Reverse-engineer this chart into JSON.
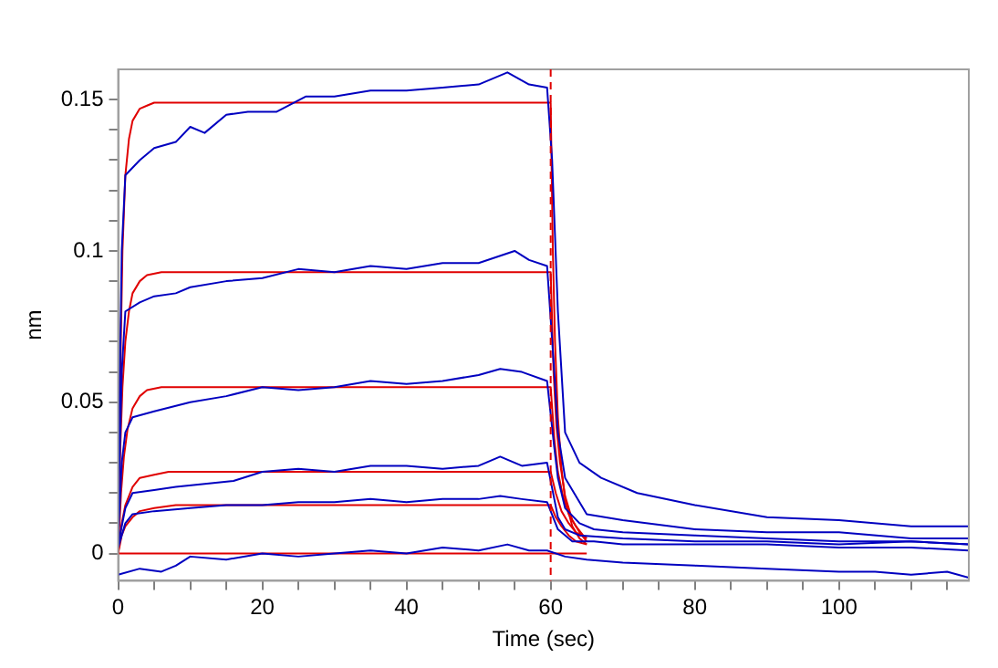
{
  "chart_data": {
    "type": "line",
    "xlabel": "Time (sec)",
    "ylabel": "nm",
    "xlim": [
      0,
      118
    ],
    "ylim": [
      -0.009,
      0.16
    ],
    "xticks": [
      0,
      {
        "value": 5,
        "label": null
      },
      {
        "value": 10,
        "label": null
      },
      {
        "value": 15,
        "label": null
      },
      20,
      {
        "value": 25,
        "label": null
      },
      {
        "value": 30,
        "label": null
      },
      {
        "value": 35,
        "label": null
      },
      40,
      {
        "value": 45,
        "label": null
      },
      {
        "value": 50,
        "label": null
      },
      {
        "value": 55,
        "label": null
      },
      60,
      {
        "value": 65,
        "label": null
      },
      {
        "value": 70,
        "label": null
      },
      {
        "value": 75,
        "label": null
      },
      80,
      {
        "value": 85,
        "label": null
      },
      {
        "value": 90,
        "label": null
      },
      {
        "value": 95,
        "label": null
      },
      100,
      {
        "value": 105,
        "label": null
      },
      {
        "value": 110,
        "label": null
      },
      {
        "value": 115,
        "label": null
      }
    ],
    "yticks": [
      0,
      {
        "value": 0.01,
        "label": null
      },
      {
        "value": 0.02,
        "label": null
      },
      {
        "value": 0.03,
        "label": null
      },
      {
        "value": 0.04,
        "label": null
      },
      0.05,
      {
        "value": 0.06,
        "label": null
      },
      {
        "value": 0.07,
        "label": null
      },
      {
        "value": 0.08,
        "label": null
      },
      {
        "value": 0.09,
        "label": null
      },
      0.1,
      {
        "value": 0.11,
        "label": null
      },
      {
        "value": 0.12,
        "label": null
      },
      {
        "value": 0.13,
        "label": null
      },
      {
        "value": 0.14,
        "label": null
      },
      0.15
    ],
    "legend": false,
    "grid": false,
    "ref_lines": [
      {
        "axis": "x",
        "value": 60,
        "color": "#e00000",
        "line_style": "dashed"
      }
    ],
    "series": [
      {
        "color": "#0000c0",
        "x": [
          0,
          0.5,
          1,
          3,
          5,
          8,
          10,
          12,
          15,
          18,
          22,
          26,
          30,
          35,
          40,
          45,
          50,
          54,
          57,
          59.5,
          60.2,
          61,
          62,
          64,
          67,
          72,
          80,
          90,
          100,
          110,
          118
        ],
        "values": [
          0.02,
          0.1,
          0.125,
          0.13,
          0.134,
          0.136,
          0.141,
          0.139,
          0.145,
          0.146,
          0.146,
          0.151,
          0.151,
          0.153,
          0.153,
          0.154,
          0.155,
          0.159,
          0.155,
          0.154,
          0.13,
          0.08,
          0.04,
          0.03,
          0.025,
          0.02,
          0.016,
          0.012,
          0.011,
          0.009,
          0.009
        ]
      },
      {
        "color": "#0000c0",
        "x": [
          0,
          0.5,
          1,
          3,
          5,
          8,
          10,
          15,
          20,
          25,
          30,
          35,
          40,
          45,
          50,
          55,
          57,
          59.5,
          60.5,
          61,
          62,
          65,
          70,
          80,
          90,
          100,
          110,
          118
        ],
        "values": [
          0.01,
          0.06,
          0.08,
          0.083,
          0.085,
          0.086,
          0.088,
          0.09,
          0.091,
          0.094,
          0.093,
          0.095,
          0.094,
          0.096,
          0.096,
          0.1,
          0.097,
          0.095,
          0.06,
          0.04,
          0.025,
          0.013,
          0.011,
          0.008,
          0.007,
          0.007,
          0.005,
          0.005
        ]
      },
      {
        "color": "#0000c0",
        "x": [
          0,
          0.5,
          1,
          2,
          5,
          10,
          15,
          20,
          25,
          30,
          35,
          40,
          45,
          50,
          53,
          56,
          59.5,
          60.5,
          61,
          62,
          64,
          66,
          70,
          80,
          90,
          100,
          110,
          118
        ],
        "values": [
          0.005,
          0.03,
          0.04,
          0.045,
          0.047,
          0.05,
          0.052,
          0.055,
          0.054,
          0.055,
          0.057,
          0.056,
          0.057,
          0.059,
          0.061,
          0.06,
          0.057,
          0.035,
          0.025,
          0.015,
          0.01,
          0.008,
          0.007,
          0.006,
          0.005,
          0.004,
          0.004,
          0.003
        ]
      },
      {
        "color": "#0000c0",
        "x": [
          0,
          1,
          2,
          5,
          8,
          12,
          16,
          20,
          25,
          30,
          35,
          40,
          45,
          50,
          53,
          56,
          59.5,
          60.5,
          61,
          62,
          64,
          70,
          80,
          90,
          100,
          110,
          118
        ],
        "values": [
          0.003,
          0.015,
          0.02,
          0.021,
          0.022,
          0.023,
          0.024,
          0.027,
          0.028,
          0.027,
          0.029,
          0.029,
          0.028,
          0.029,
          0.032,
          0.029,
          0.03,
          0.018,
          0.012,
          0.008,
          0.006,
          0.005,
          0.004,
          0.004,
          0.003,
          0.004,
          0.003
        ]
      },
      {
        "color": "#0000c0",
        "x": [
          0,
          1,
          2,
          5,
          10,
          15,
          20,
          25,
          30,
          35,
          40,
          45,
          50,
          53,
          56,
          59.5,
          60.5,
          61,
          63,
          66,
          70,
          80,
          90,
          100,
          110,
          118
        ],
        "values": [
          0.002,
          0.01,
          0.013,
          0.014,
          0.015,
          0.016,
          0.016,
          0.017,
          0.017,
          0.018,
          0.017,
          0.018,
          0.018,
          0.019,
          0.018,
          0.017,
          0.011,
          0.008,
          0.004,
          0.004,
          0.003,
          0.003,
          0.003,
          0.002,
          0.002,
          0.001
        ]
      },
      {
        "color": "#0000c0",
        "x": [
          0,
          3,
          6,
          8,
          10,
          15,
          20,
          25,
          30,
          35,
          40,
          45,
          50,
          54,
          57,
          59.5,
          62,
          65,
          70,
          80,
          90,
          100,
          105,
          110,
          115,
          118
        ],
        "values": [
          -0.007,
          -0.005,
          -0.006,
          -0.004,
          -0.001,
          -0.002,
          0,
          -0.001,
          0,
          0.001,
          0,
          0.002,
          0.001,
          0.003,
          0.001,
          0.001,
          -0.001,
          -0.002,
          -0.003,
          -0.004,
          -0.005,
          -0.006,
          -0.006,
          -0.007,
          -0.006,
          -0.008
        ]
      },
      {
        "color": "#e00000",
        "x": [
          0,
          0.3,
          0.6,
          1,
          1.5,
          2,
          3,
          4,
          5,
          60,
          60.3,
          60.6,
          61,
          61.5,
          62,
          63,
          64,
          65
        ],
        "values": [
          0,
          0.06,
          0.1,
          0.125,
          0.137,
          0.143,
          0.147,
          0.148,
          0.149,
          0.149,
          0.1,
          0.07,
          0.045,
          0.028,
          0.018,
          0.009,
          0.005,
          0.003
        ]
      },
      {
        "color": "#e00000",
        "x": [
          0,
          0.3,
          0.6,
          1,
          1.5,
          2,
          3,
          4,
          6,
          60,
          60.4,
          60.8,
          61.3,
          62,
          63,
          64,
          65
        ],
        "values": [
          0,
          0.035,
          0.055,
          0.07,
          0.08,
          0.086,
          0.09,
          0.092,
          0.093,
          0.093,
          0.06,
          0.042,
          0.03,
          0.019,
          0.011,
          0.007,
          0.004
        ]
      },
      {
        "color": "#e00000",
        "x": [
          0,
          0.4,
          0.8,
          1.3,
          2,
          3,
          4,
          6,
          60,
          60.5,
          61,
          61.7,
          62.5,
          63.5,
          64.5,
          65
        ],
        "values": [
          0,
          0.02,
          0.032,
          0.041,
          0.048,
          0.052,
          0.054,
          0.055,
          0.055,
          0.038,
          0.027,
          0.019,
          0.013,
          0.009,
          0.006,
          0.005
        ]
      },
      {
        "color": "#e00000",
        "x": [
          0,
          0.5,
          1,
          2,
          3,
          5,
          7,
          60,
          60.7,
          61.5,
          62.5,
          63.5,
          65
        ],
        "values": [
          0,
          0.01,
          0.016,
          0.022,
          0.025,
          0.026,
          0.027,
          0.027,
          0.02,
          0.014,
          0.01,
          0.007,
          0.005
        ]
      },
      {
        "color": "#e00000",
        "x": [
          0,
          0.5,
          1,
          2,
          3,
          5,
          8,
          60,
          60.7,
          61.5,
          62.5,
          63.5,
          65
        ],
        "values": [
          0,
          0.006,
          0.009,
          0.012,
          0.014,
          0.015,
          0.016,
          0.016,
          0.012,
          0.009,
          0.006,
          0.004,
          0.003
        ]
      },
      {
        "color": "#e00000",
        "x": [
          0,
          60,
          62,
          65
        ],
        "values": [
          0,
          0,
          0,
          0
        ]
      }
    ]
  }
}
